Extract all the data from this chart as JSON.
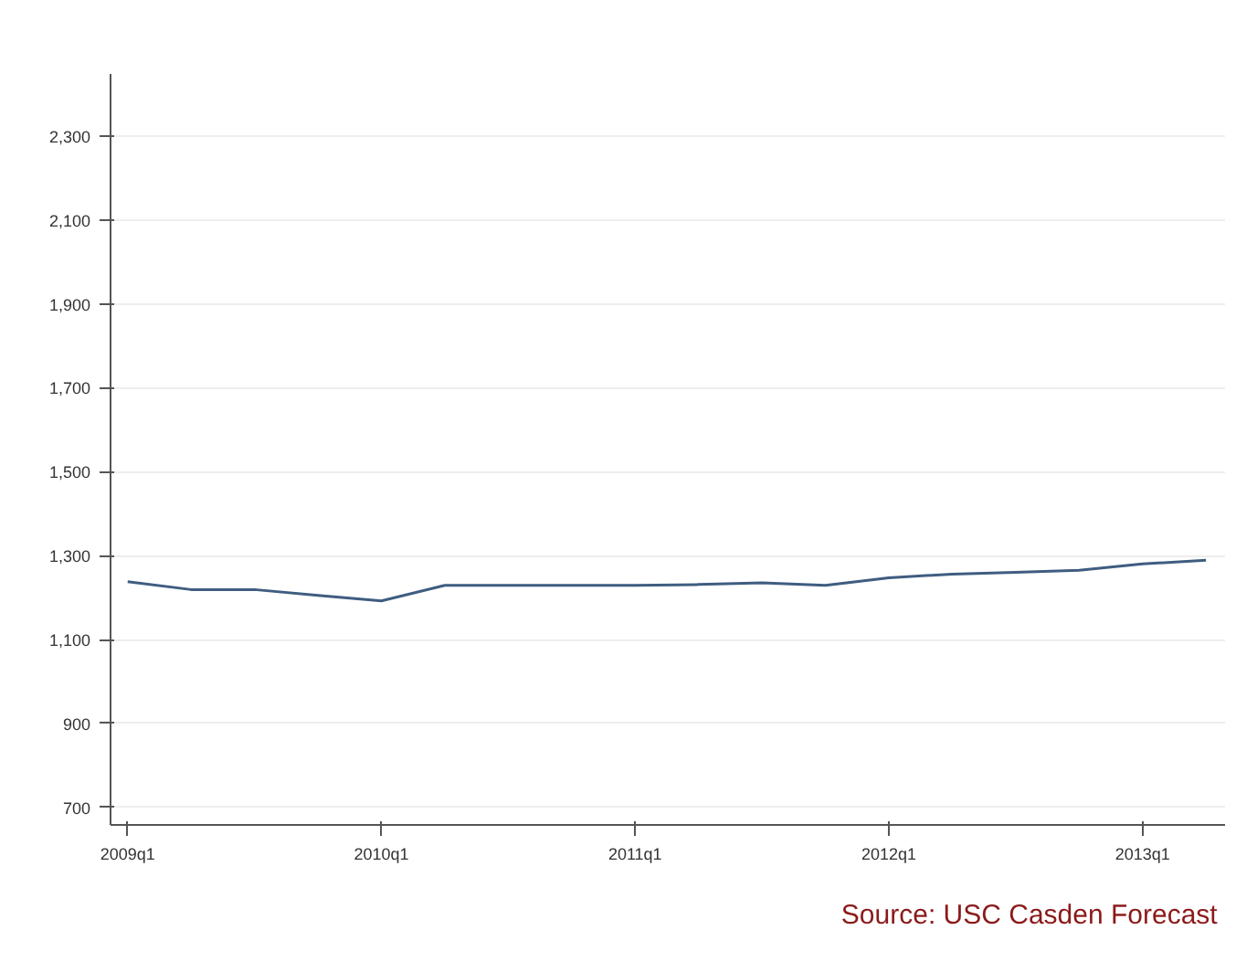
{
  "chart_data": {
    "type": "line",
    "categories": [
      "2009q1",
      null,
      null,
      null,
      "2010q1",
      null,
      null,
      null,
      "2011q1",
      null,
      null,
      null,
      "2012q1",
      null,
      null,
      null,
      "2013q1",
      null
    ],
    "series": [
      {
        "color": "#3f5d80",
        "values": [
          1238,
          1219,
          1219,
          1205,
          1192,
          1229,
          1229,
          1229,
          1229,
          1231,
          1235,
          1229,
          1247,
          1256,
          1260,
          1265,
          1280,
          1289
        ]
      }
    ],
    "ylim": [
      658,
      2448
    ],
    "yticks": [
      {
        "value": 700,
        "label": "700"
      },
      {
        "value": 900,
        "label": "900"
      },
      {
        "value": 1100,
        "label": "1,100"
      },
      {
        "value": 1300,
        "label": "1,300"
      },
      {
        "value": 1500,
        "label": "1,500"
      },
      {
        "value": 1700,
        "label": "1,700"
      },
      {
        "value": 1900,
        "label": "1,900"
      },
      {
        "value": 2100,
        "label": "2,100"
      },
      {
        "value": 2300,
        "label": "2,300"
      }
    ],
    "grid": "y",
    "annotations": [
      "Source:  USC Casden Forecast"
    ]
  }
}
